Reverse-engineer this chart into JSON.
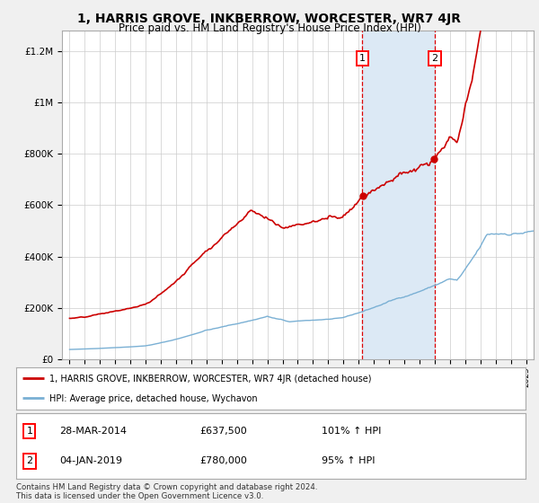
{
  "title": "1, HARRIS GROVE, INKBERROW, WORCESTER, WR7 4JR",
  "subtitle": "Price paid vs. HM Land Registry's House Price Index (HPI)",
  "title_fontsize": 10,
  "subtitle_fontsize": 8.5,
  "bg_color": "#f0f0f0",
  "plot_bg_color": "#ffffff",
  "red_color": "#cc0000",
  "blue_color": "#7ab0d4",
  "shaded_color": "#dce9f5",
  "sale1_date": 2014.24,
  "sale2_date": 2019.01,
  "sale1_price": 637500,
  "sale2_price": 780000,
  "legend_line1": "1, HARRIS GROVE, INKBERROW, WORCESTER, WR7 4JR (detached house)",
  "legend_line2": "HPI: Average price, detached house, Wychavon",
  "table_row1": [
    "1",
    "28-MAR-2014",
    "£637,500",
    "101% ↑ HPI"
  ],
  "table_row2": [
    "2",
    "04-JAN-2019",
    "£780,000",
    "95% ↑ HPI"
  ],
  "footer": "Contains HM Land Registry data © Crown copyright and database right 2024.\nThis data is licensed under the Open Government Licence v3.0.",
  "ylim": [
    0,
    1280000
  ],
  "xlim_start": 1994.5,
  "xlim_end": 2025.5
}
